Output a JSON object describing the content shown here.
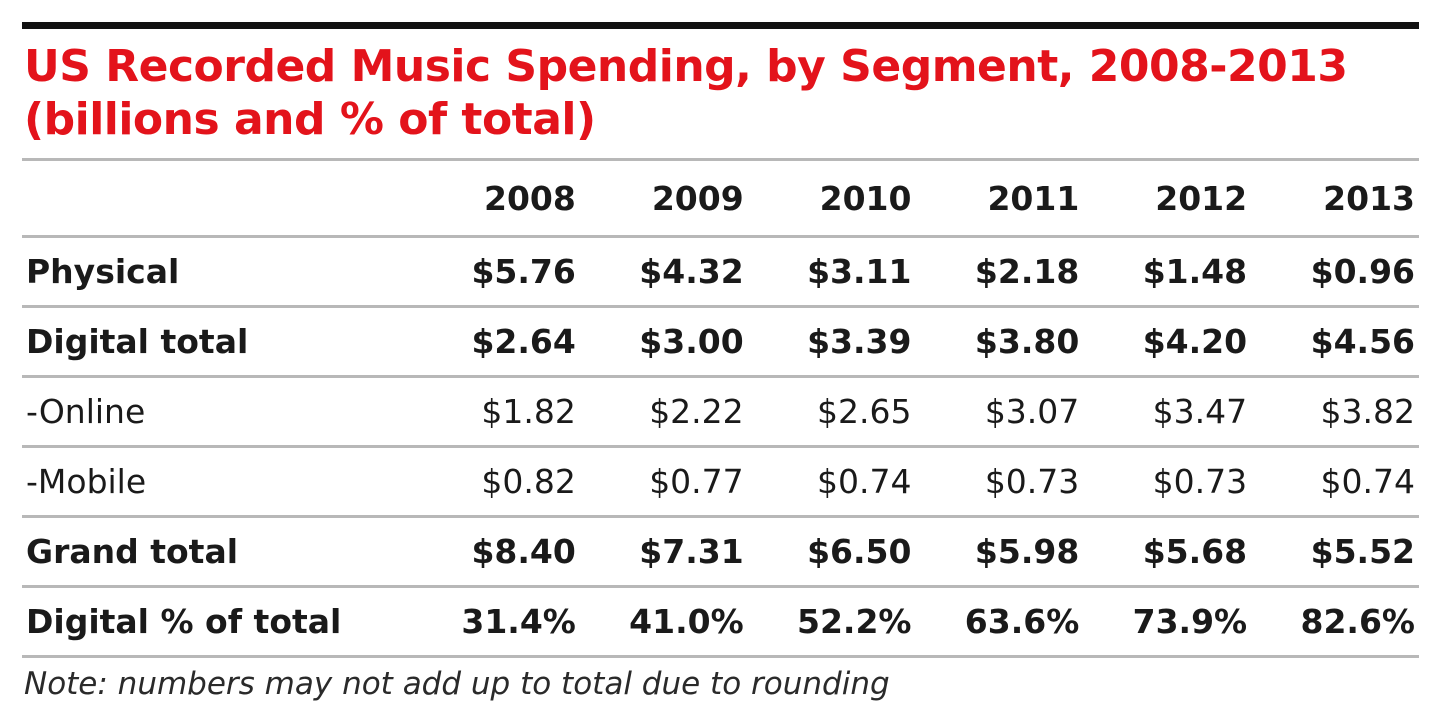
{
  "chart_data": {
    "type": "table",
    "title": "US Recorded Music Spending, by Segment, 2008-2013",
    "subtitle": "(billions and % of total)",
    "columns": [
      "2008",
      "2009",
      "2010",
      "2011",
      "2012",
      "2013"
    ],
    "rows": [
      {
        "label": "Physical",
        "style": "bold",
        "values": [
          "$5.76",
          "$4.32",
          "$3.11",
          "$2.18",
          "$1.48",
          "$0.96"
        ]
      },
      {
        "label": "Digital total",
        "style": "bold",
        "values": [
          "$2.64",
          "$3.00",
          "$3.39",
          "$3.80",
          "$4.20",
          "$4.56"
        ]
      },
      {
        "label": "-Online",
        "style": "sub",
        "values": [
          "$1.82",
          "$2.22",
          "$2.65",
          "$3.07",
          "$3.47",
          "$3.82"
        ]
      },
      {
        "label": "-Mobile",
        "style": "sub",
        "values": [
          "$0.82",
          "$0.77",
          "$0.74",
          "$0.73",
          "$0.73",
          "$0.74"
        ]
      },
      {
        "label": "Grand total",
        "style": "bold",
        "values": [
          "$8.40",
          "$7.31",
          "$6.50",
          "$5.98",
          "$5.68",
          "$5.52"
        ]
      },
      {
        "label": "Digital % of total",
        "style": "bold",
        "values": [
          "31.4%",
          "41.0%",
          "52.2%",
          "63.6%",
          "73.9%",
          "82.6%"
        ]
      }
    ],
    "note": "Note: numbers may not add up to total due to rounding"
  },
  "colors": {
    "title": "#e3131b",
    "rule": "#111111",
    "divider": "#b8b8b8"
  }
}
